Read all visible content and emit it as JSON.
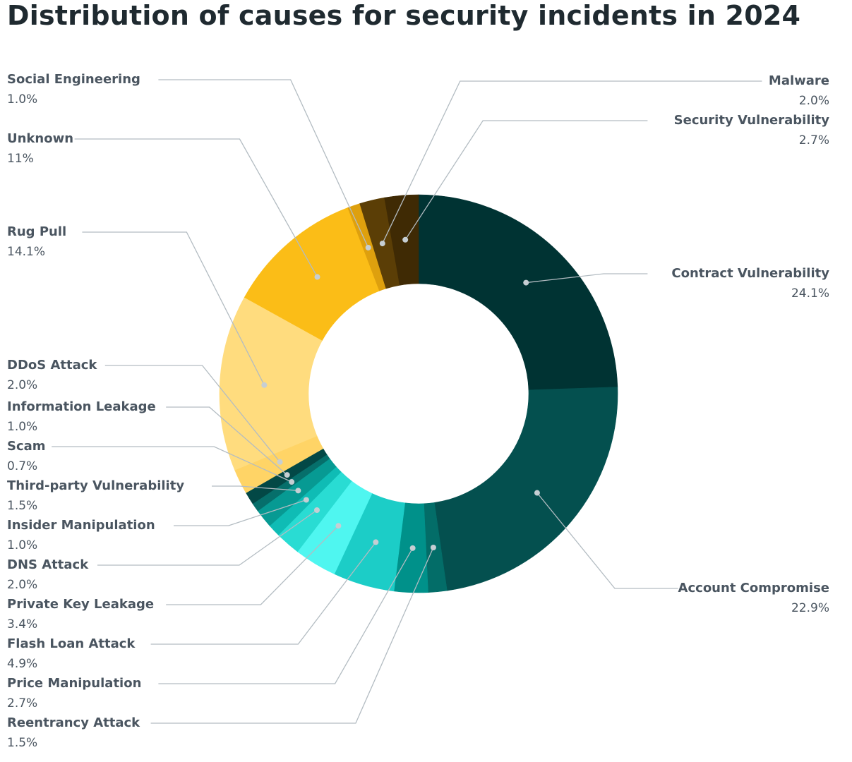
{
  "chart_data": {
    "type": "pie",
    "title": "Distribution of causes for security incidents in 2024",
    "slices": [
      {
        "label": "Contract Vulnerability",
        "value": 24.1,
        "display": "24.1%",
        "color": "#003333"
      },
      {
        "label": "Account Compromise",
        "value": 22.9,
        "display": "22.9%",
        "color": "#04504f"
      },
      {
        "label": "Reentrancy Attack",
        "value": 1.5,
        "display": "1.5%",
        "color": "#036d68"
      },
      {
        "label": "Price Manipulation",
        "value": 2.7,
        "display": "2.7%",
        "color": "#00918a"
      },
      {
        "label": "Flash Loan Attack",
        "value": 4.9,
        "display": "4.9%",
        "color": "#1ccdc7"
      },
      {
        "label": "Private Key Leakage",
        "value": 3.4,
        "display": "3.4%",
        "color": "#4ff6f0"
      },
      {
        "label": "DNS Attack",
        "value": 2.0,
        "display": "2.0%",
        "color": "#29dcd3"
      },
      {
        "label": "Insider Manipulation",
        "value": 1.0,
        "display": "1.0%",
        "color": "#0fbcb5"
      },
      {
        "label": "Third-party Vulnerability",
        "value": 1.5,
        "display": "1.5%",
        "color": "#079a93"
      },
      {
        "label": "Scam",
        "value": 0.7,
        "display": "0.7%",
        "color": "#066f6b"
      },
      {
        "label": "Information Leakage",
        "value": 1.0,
        "display": "1.0%",
        "color": "#034846"
      },
      {
        "label": "DDoS Attack",
        "value": 2.0,
        "display": "2.0%",
        "color": "#ffd466"
      },
      {
        "label": "Rug Pull",
        "value": 14.1,
        "display": "14.1%",
        "color": "#ffdc7e"
      },
      {
        "label": "Unknown",
        "value": 11,
        "display": "11%",
        "color": "#fbbd17"
      },
      {
        "label": "Social Engineering",
        "value": 1.0,
        "display": "1.0%",
        "color": "#dea00e"
      },
      {
        "label": "Malware",
        "value": 2.0,
        "display": "2.0%",
        "color": "#5b3e06"
      },
      {
        "label": "Security Vulnerability",
        "value": 2.7,
        "display": "2.7%",
        "color": "#3f2a04"
      }
    ],
    "legend": "callout labels around the donut"
  }
}
